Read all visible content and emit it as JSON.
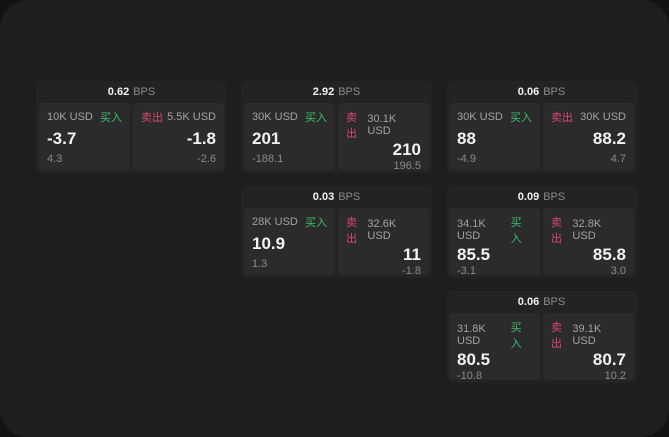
{
  "theme": {
    "backdrop": "#131313",
    "surface": "#1e1e1e",
    "card_bg": "#232323",
    "pane_bg": "#2b2b2b",
    "text_primary": "#f2f2f2",
    "text_secondary": "#a3a3a3",
    "text_muted": "#8a8a8a",
    "buy_color": "#3fbf6c",
    "sell_color": "#d5496d"
  },
  "cards": [
    {
      "bps": "0.62",
      "unit": "BPS",
      "grid": {
        "row": 1,
        "col": 1
      },
      "buy": {
        "amount": "10K USD",
        "label": "买入",
        "price": "-3.7",
        "change": "4.3"
      },
      "sell": {
        "label": "卖出",
        "amount": "5.5K USD",
        "price": "-1.8",
        "change": "-2.6"
      }
    },
    {
      "bps": "2.92",
      "unit": "BPS",
      "grid": {
        "row": 1,
        "col": 2
      },
      "buy": {
        "amount": "30K USD",
        "label": "买入",
        "price": "201",
        "change": "-188.1"
      },
      "sell": {
        "label": "卖出",
        "amount": "30.1K USD",
        "price": "210",
        "change": "196.5"
      }
    },
    {
      "bps": "0.06",
      "unit": "BPS",
      "grid": {
        "row": 1,
        "col": 3
      },
      "buy": {
        "amount": "30K USD",
        "label": "买入",
        "price": "88",
        "change": "-4.9"
      },
      "sell": {
        "label": "卖出",
        "amount": "30K USD",
        "price": "88.2",
        "change": "4.7"
      }
    },
    {
      "bps": "0.03",
      "unit": "BPS",
      "grid": {
        "row": 2,
        "col": 2
      },
      "buy": {
        "amount": "28K USD",
        "label": "买入",
        "price": "10.9",
        "change": "1.3"
      },
      "sell": {
        "label": "卖出",
        "amount": "32.6K USD",
        "price": "11",
        "change": "-1.8"
      }
    },
    {
      "bps": "0.09",
      "unit": "BPS",
      "grid": {
        "row": 2,
        "col": 3
      },
      "buy": {
        "amount": "34.1K USD",
        "label": "买入",
        "price": "85.5",
        "change": "-3.1"
      },
      "sell": {
        "label": "卖出",
        "amount": "32.8K USD",
        "price": "85.8",
        "change": "3.0"
      }
    },
    {
      "bps": "0.06",
      "unit": "BPS",
      "grid": {
        "row": 3,
        "col": 3
      },
      "buy": {
        "amount": "31.8K USD",
        "label": "买入",
        "price": "80.5",
        "change": "-10.8"
      },
      "sell": {
        "label": "卖出",
        "amount": "39.1K USD",
        "price": "80.7",
        "change": "10.2"
      }
    }
  ]
}
